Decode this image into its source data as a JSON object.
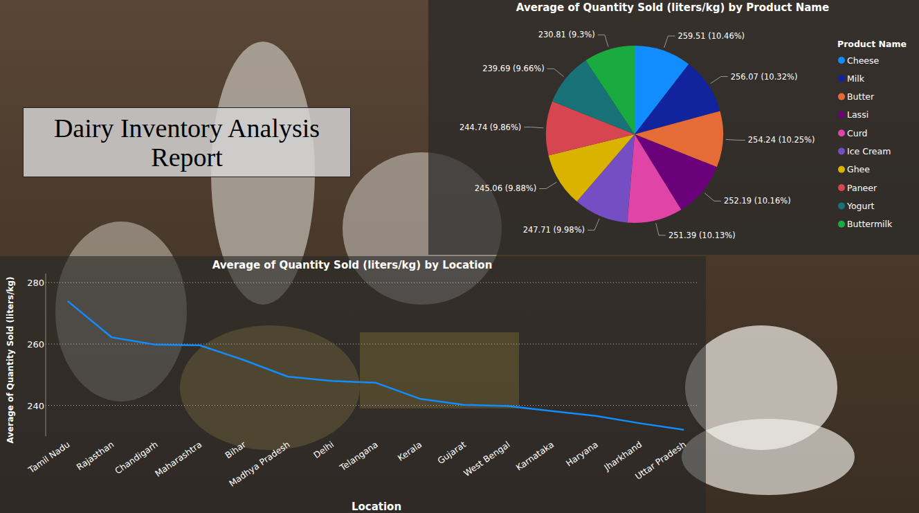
{
  "title": "Dairy Inventory Analysis Report",
  "chart_data": [
    {
      "type": "pie",
      "title": "Average of Quantity Sold (liters/kg) by Product Name",
      "legend_title": "Product Name",
      "legend": "right",
      "categories": [
        "Cheese",
        "Milk",
        "Butter",
        "Lassi",
        "Curd",
        "Ice Cream",
        "Ghee",
        "Paneer",
        "Yogurt",
        "Buttermilk"
      ],
      "values": [
        259.51,
        256.07,
        254.24,
        252.19,
        251.39,
        247.71,
        245.06,
        244.74,
        239.69,
        230.81
      ],
      "value_labels": [
        "259.51 (10.46%)",
        "256.07 (10.32%)",
        "254.24 (10.25%)",
        "252.19 (10.16%)",
        "251.39 (10.13%)",
        "247.71 (9.98%)",
        "245.06 (9.88%)",
        "244.74 (9.86%)",
        "239.69 (9.66%)",
        "230.81 (9.3%)"
      ],
      "colors": [
        "#118DFF",
        "#12239E",
        "#E66C37",
        "#6B007B",
        "#E044A7",
        "#744EC2",
        "#D9B300",
        "#D64550",
        "#197278",
        "#1AAB40"
      ],
      "data_labels": true
    },
    {
      "type": "line",
      "title": "Average of Quantity Sold (liters/kg) by Location",
      "x_label": "Location",
      "y_label": "Average of Quantity Sold (liters/kg)",
      "categories": [
        "Tamil Nadu",
        "Rajasthan",
        "Chandigarh",
        "Maharashtra",
        "Bihar",
        "Madhya Pradesh",
        "Delhi",
        "Telangana",
        "Kerala",
        "Gujarat",
        "West Bengal",
        "Karnataka",
        "Haryana",
        "Jharkhand",
        "Uttar Pradesh"
      ],
      "values": [
        274.0,
        262.2,
        259.8,
        259.6,
        254.8,
        249.4,
        248.0,
        247.4,
        242.2,
        240.2,
        239.8,
        238.2,
        236.6,
        234.2,
        232.1
      ],
      "color": "#118DFF",
      "ylim": [
        230,
        283
      ],
      "yticks": [
        240,
        260,
        280
      ],
      "grid": true
    }
  ]
}
